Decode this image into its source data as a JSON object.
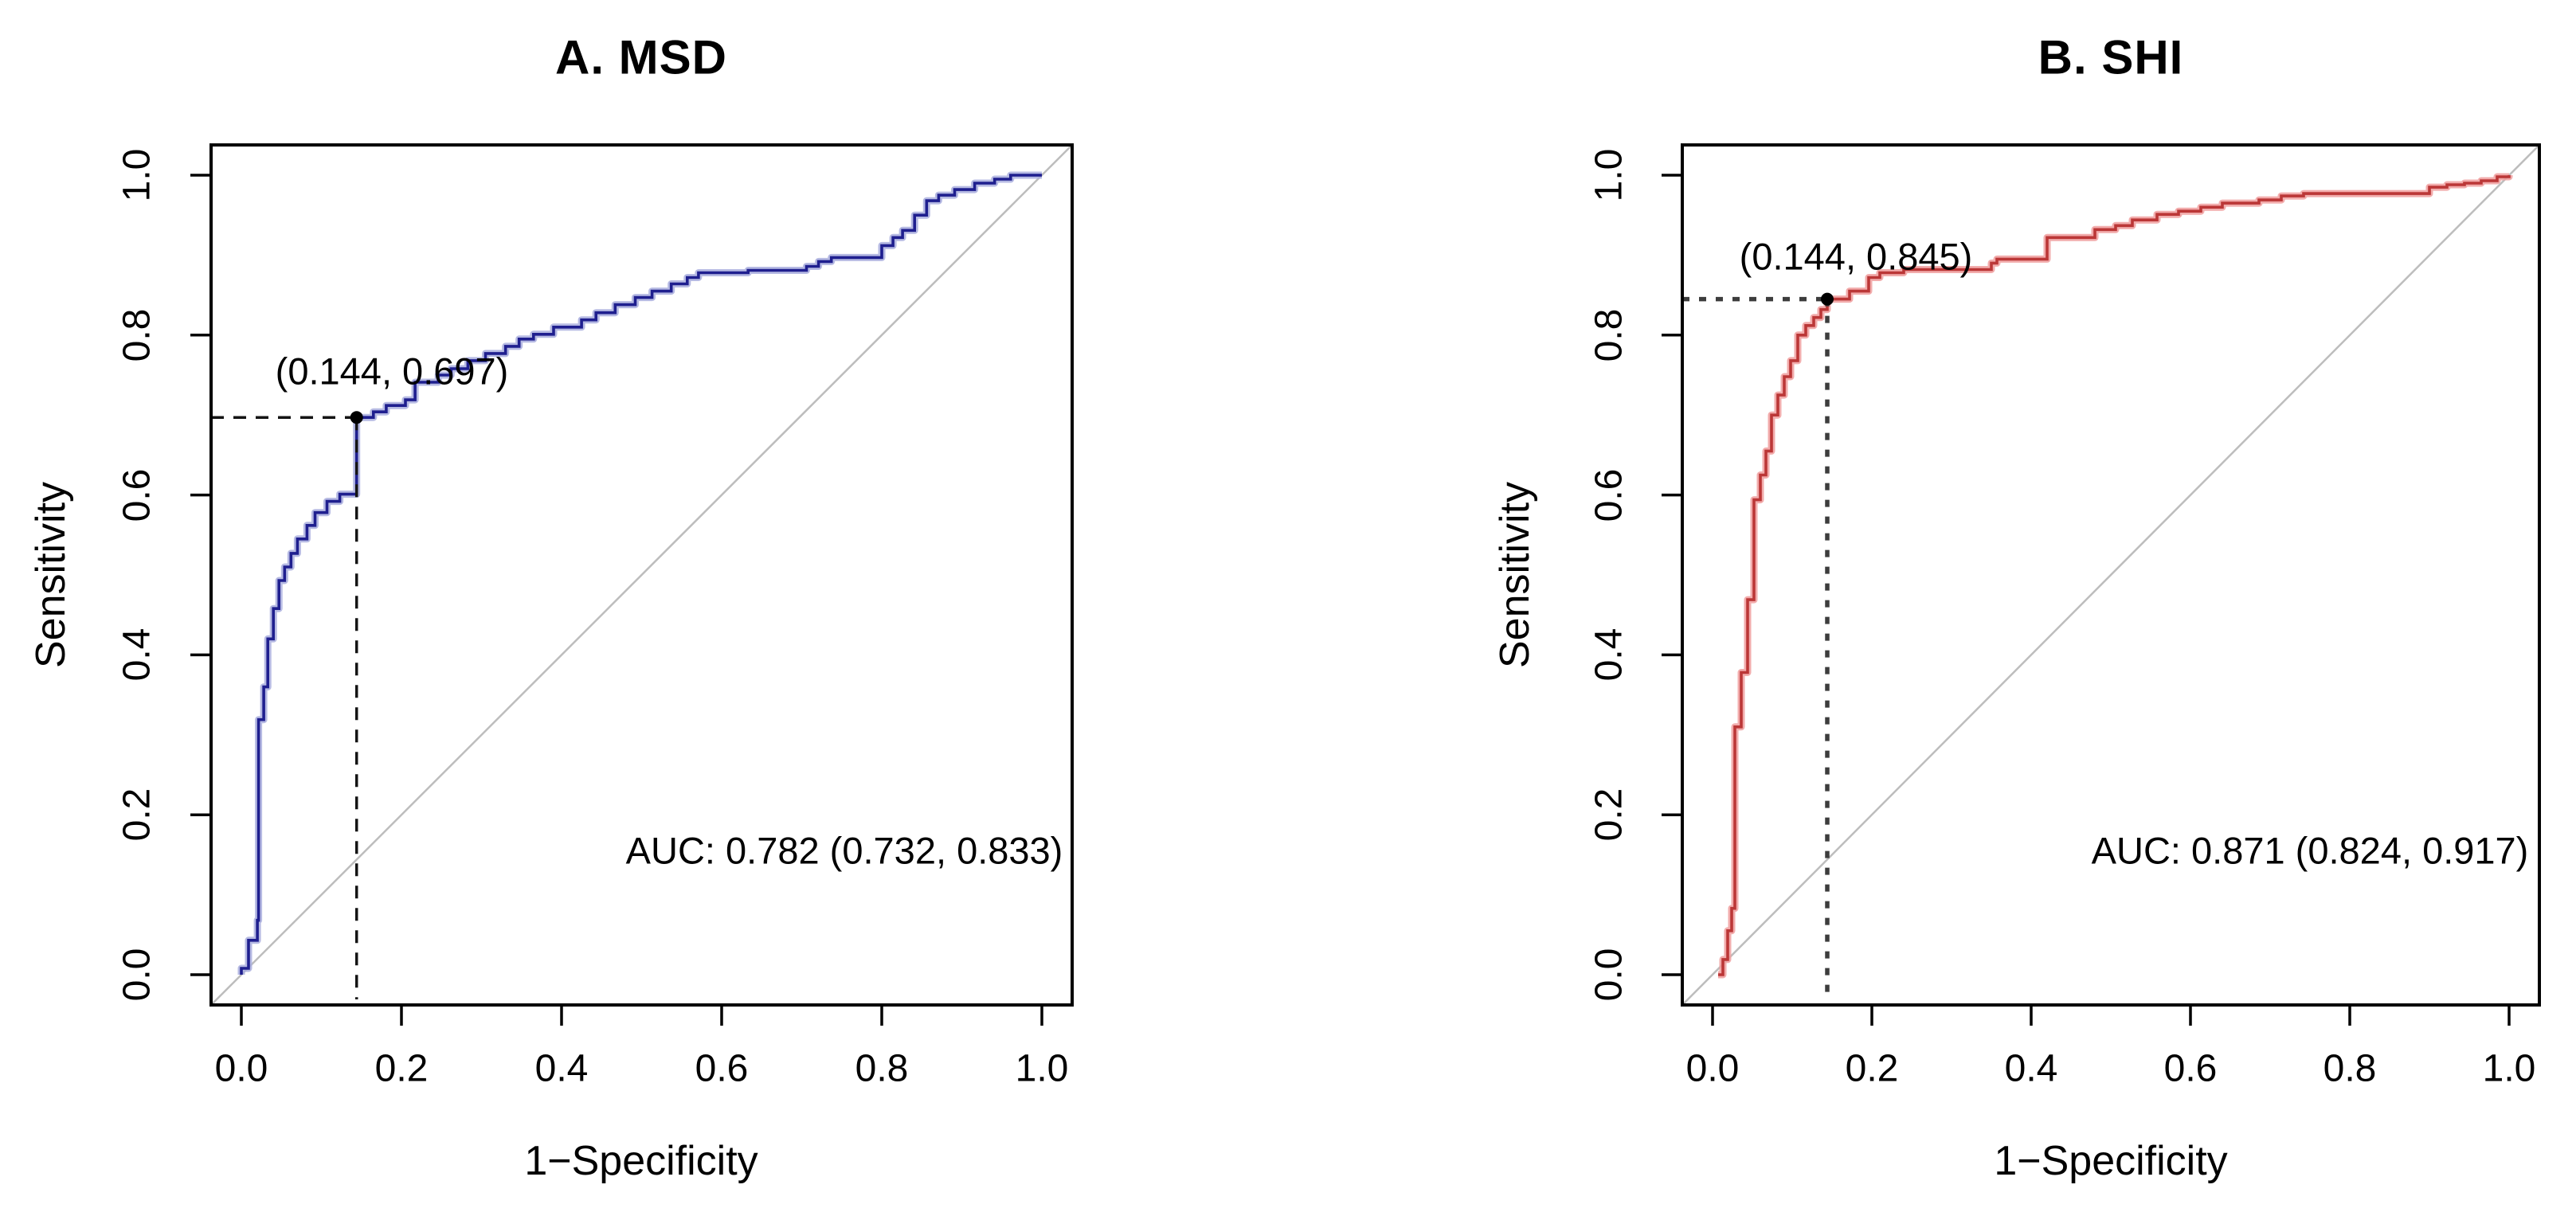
{
  "figure": {
    "background": "#ffffff"
  },
  "chart_data": [
    {
      "type": "line",
      "panel": "A",
      "title": "A. MSD",
      "xlabel": "1−Specificity",
      "ylabel": "Sensitivity",
      "xlim": [
        0,
        1
      ],
      "ylim": [
        0,
        1
      ],
      "x_ticks": [
        "0.0",
        "0.2",
        "0.4",
        "0.6",
        "0.8",
        "1.0"
      ],
      "y_ticks": [
        "0.0",
        "0.2",
        "0.4",
        "0.6",
        "0.8",
        "1.0"
      ],
      "auc_label": "AUC: 0.782 (0.732, 0.833)",
      "auc": 0.782,
      "auc_ci": [
        0.732,
        0.833
      ],
      "threshold_point": {
        "fpr": 0.144,
        "tpr": 0.697,
        "label": "(0.144, 0.697)"
      },
      "curve_color": "#1f1f8f",
      "halo_color": "#a9aede",
      "diagonal_color": "#bdbdbd",
      "grid": false,
      "roc_points": [
        [
          0,
          0
        ],
        [
          0,
          0.008
        ],
        [
          0.009,
          0.008
        ],
        [
          0.009,
          0.043
        ],
        [
          0.02,
          0.043
        ],
        [
          0.02,
          0.068
        ],
        [
          0.0215,
          0.068
        ],
        [
          0.0215,
          0.319
        ],
        [
          0.028,
          0.319
        ],
        [
          0.028,
          0.36
        ],
        [
          0.033,
          0.36
        ],
        [
          0.033,
          0.42
        ],
        [
          0.04,
          0.42
        ],
        [
          0.04,
          0.458
        ],
        [
          0.047,
          0.458
        ],
        [
          0.047,
          0.493
        ],
        [
          0.054,
          0.493
        ],
        [
          0.054,
          0.51
        ],
        [
          0.062,
          0.51
        ],
        [
          0.062,
          0.527
        ],
        [
          0.07,
          0.527
        ],
        [
          0.07,
          0.545
        ],
        [
          0.082,
          0.545
        ],
        [
          0.082,
          0.562
        ],
        [
          0.092,
          0.562
        ],
        [
          0.092,
          0.578
        ],
        [
          0.107,
          0.578
        ],
        [
          0.107,
          0.592
        ],
        [
          0.123,
          0.592
        ],
        [
          0.123,
          0.601
        ],
        [
          0.144,
          0.601
        ],
        [
          0.144,
          0.697
        ],
        [
          0.165,
          0.697
        ],
        [
          0.165,
          0.704
        ],
        [
          0.181,
          0.704
        ],
        [
          0.181,
          0.712
        ],
        [
          0.205,
          0.712
        ],
        [
          0.205,
          0.719
        ],
        [
          0.217,
          0.719
        ],
        [
          0.217,
          0.741
        ],
        [
          0.246,
          0.741
        ],
        [
          0.246,
          0.75
        ],
        [
          0.262,
          0.75
        ],
        [
          0.262,
          0.758
        ],
        [
          0.283,
          0.758
        ],
        [
          0.283,
          0.768
        ],
        [
          0.305,
          0.768
        ],
        [
          0.305,
          0.777
        ],
        [
          0.33,
          0.777
        ],
        [
          0.33,
          0.786
        ],
        [
          0.347,
          0.786
        ],
        [
          0.347,
          0.795
        ],
        [
          0.365,
          0.795
        ],
        [
          0.365,
          0.801
        ],
        [
          0.39,
          0.801
        ],
        [
          0.39,
          0.81
        ],
        [
          0.425,
          0.81
        ],
        [
          0.425,
          0.819
        ],
        [
          0.443,
          0.819
        ],
        [
          0.443,
          0.828
        ],
        [
          0.467,
          0.828
        ],
        [
          0.467,
          0.838
        ],
        [
          0.492,
          0.838
        ],
        [
          0.492,
          0.847
        ],
        [
          0.513,
          0.847
        ],
        [
          0.513,
          0.855
        ],
        [
          0.537,
          0.855
        ],
        [
          0.537,
          0.864
        ],
        [
          0.557,
          0.864
        ],
        [
          0.557,
          0.872
        ],
        [
          0.571,
          0.872
        ],
        [
          0.571,
          0.878
        ],
        [
          0.633,
          0.878
        ],
        [
          0.633,
          0.881
        ],
        [
          0.706,
          0.881
        ],
        [
          0.706,
          0.886
        ],
        [
          0.721,
          0.886
        ],
        [
          0.721,
          0.892
        ],
        [
          0.737,
          0.892
        ],
        [
          0.737,
          0.897
        ],
        [
          0.8,
          0.897
        ],
        [
          0.8,
          0.912
        ],
        [
          0.814,
          0.912
        ],
        [
          0.814,
          0.922
        ],
        [
          0.826,
          0.922
        ],
        [
          0.826,
          0.931
        ],
        [
          0.841,
          0.931
        ],
        [
          0.841,
          0.95
        ],
        [
          0.856,
          0.95
        ],
        [
          0.856,
          0.968
        ],
        [
          0.871,
          0.968
        ],
        [
          0.871,
          0.975
        ],
        [
          0.891,
          0.975
        ],
        [
          0.891,
          0.982
        ],
        [
          0.916,
          0.982
        ],
        [
          0.916,
          0.99
        ],
        [
          0.941,
          0.99
        ],
        [
          0.941,
          0.995
        ],
        [
          0.961,
          0.995
        ],
        [
          0.961,
          1
        ],
        [
          1,
          1
        ]
      ]
    },
    {
      "type": "line",
      "panel": "B",
      "title": "B. SHI",
      "xlabel": "1−Specificity",
      "ylabel": "Sensitivity",
      "xlim": [
        0,
        1
      ],
      "ylim": [
        0,
        1
      ],
      "x_ticks": [
        "0.0",
        "0.2",
        "0.4",
        "0.6",
        "0.8",
        "1.0"
      ],
      "y_ticks": [
        "0.0",
        "0.2",
        "0.4",
        "0.6",
        "0.8",
        "1.0"
      ],
      "auc_label": "AUC: 0.871 (0.824, 0.917)",
      "auc": 0.871,
      "auc_ci": [
        0.824,
        0.917
      ],
      "threshold_point": {
        "fpr": 0.144,
        "tpr": 0.845,
        "label": "(0.144, 0.845)"
      },
      "curve_color": "#bb3737",
      "halo_color": "#f09e9e",
      "diagonal_color": "#bdbdbd",
      "grid": false,
      "roc_points": [
        [
          0.007,
          0
        ],
        [
          0.013,
          0
        ],
        [
          0.013,
          0.019
        ],
        [
          0.019,
          0.019
        ],
        [
          0.019,
          0.055
        ],
        [
          0.024,
          0.055
        ],
        [
          0.024,
          0.083
        ],
        [
          0.028,
          0.083
        ],
        [
          0.028,
          0.31
        ],
        [
          0.036,
          0.31
        ],
        [
          0.036,
          0.378
        ],
        [
          0.044,
          0.378
        ],
        [
          0.044,
          0.469
        ],
        [
          0.052,
          0.469
        ],
        [
          0.052,
          0.594
        ],
        [
          0.06,
          0.594
        ],
        [
          0.06,
          0.625
        ],
        [
          0.067,
          0.625
        ],
        [
          0.067,
          0.655
        ],
        [
          0.074,
          0.655
        ],
        [
          0.074,
          0.7
        ],
        [
          0.082,
          0.7
        ],
        [
          0.082,
          0.725
        ],
        [
          0.09,
          0.725
        ],
        [
          0.09,
          0.748
        ],
        [
          0.098,
          0.748
        ],
        [
          0.098,
          0.768
        ],
        [
          0.107,
          0.768
        ],
        [
          0.107,
          0.8
        ],
        [
          0.117,
          0.8
        ],
        [
          0.117,
          0.812
        ],
        [
          0.127,
          0.812
        ],
        [
          0.127,
          0.822
        ],
        [
          0.136,
          0.822
        ],
        [
          0.136,
          0.832
        ],
        [
          0.144,
          0.832
        ],
        [
          0.144,
          0.845
        ],
        [
          0.172,
          0.845
        ],
        [
          0.172,
          0.855
        ],
        [
          0.196,
          0.855
        ],
        [
          0.196,
          0.872
        ],
        [
          0.21,
          0.872
        ],
        [
          0.21,
          0.878
        ],
        [
          0.24,
          0.878
        ],
        [
          0.24,
          0.882
        ],
        [
          0.35,
          0.882
        ],
        [
          0.35,
          0.89
        ],
        [
          0.357,
          0.89
        ],
        [
          0.357,
          0.895
        ],
        [
          0.42,
          0.895
        ],
        [
          0.42,
          0.922
        ],
        [
          0.48,
          0.922
        ],
        [
          0.48,
          0.932
        ],
        [
          0.506,
          0.932
        ],
        [
          0.506,
          0.937
        ],
        [
          0.527,
          0.937
        ],
        [
          0.527,
          0.944
        ],
        [
          0.558,
          0.944
        ],
        [
          0.558,
          0.951
        ],
        [
          0.585,
          0.951
        ],
        [
          0.585,
          0.955
        ],
        [
          0.613,
          0.955
        ],
        [
          0.613,
          0.96
        ],
        [
          0.64,
          0.96
        ],
        [
          0.64,
          0.965
        ],
        [
          0.686,
          0.965
        ],
        [
          0.686,
          0.969
        ],
        [
          0.714,
          0.969
        ],
        [
          0.714,
          0.974
        ],
        [
          0.742,
          0.974
        ],
        [
          0.742,
          0.977
        ],
        [
          0.9,
          0.977
        ],
        [
          0.9,
          0.985
        ],
        [
          0.922,
          0.985
        ],
        [
          0.922,
          0.988
        ],
        [
          0.944,
          0.988
        ],
        [
          0.944,
          0.99
        ],
        [
          0.965,
          0.99
        ],
        [
          0.965,
          0.993
        ],
        [
          0.985,
          0.993
        ],
        [
          0.985,
          0.998
        ],
        [
          1,
          0.998
        ],
        [
          1,
          1
        ]
      ]
    }
  ]
}
